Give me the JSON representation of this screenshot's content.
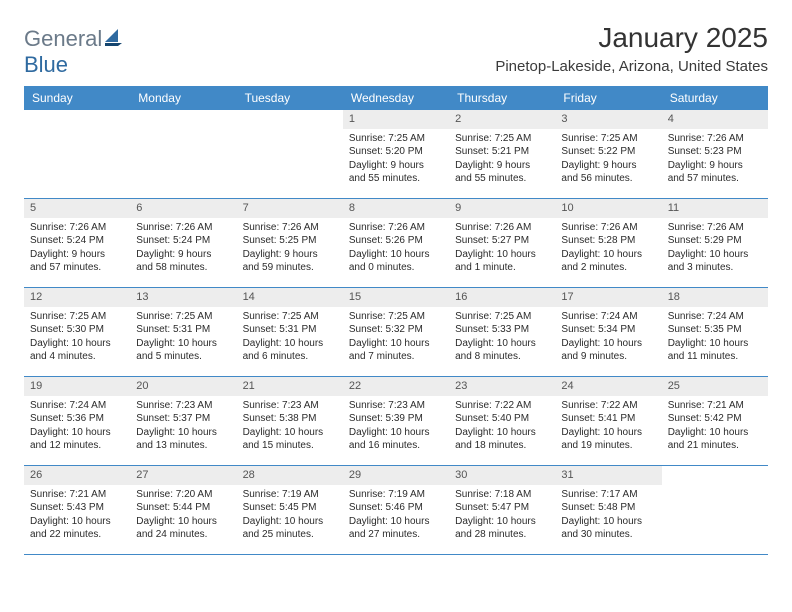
{
  "brand": {
    "part1": "General",
    "part2": "Blue"
  },
  "title": {
    "month": "January 2025",
    "location": "Pinetop-Lakeside, Arizona, United States"
  },
  "style": {
    "header_bg": "#4189c7",
    "header_text": "#ffffff",
    "daynum_bg": "#ededed",
    "daynum_text": "#555555",
    "row_border": "#4189c7",
    "body_text": "#2b2b2b",
    "title_text": "#333333",
    "logo_gray": "#6b7a89",
    "logo_blue": "#2f6aa0",
    "page_bg": "#ffffff",
    "font_sizes_pt": {
      "title_month": 21,
      "title_location": 11,
      "header": 9,
      "daynum": 8,
      "cell": 7.5,
      "logo": 16
    }
  },
  "columns": [
    "Sunday",
    "Monday",
    "Tuesday",
    "Wednesday",
    "Thursday",
    "Friday",
    "Saturday"
  ],
  "weeks": [
    [
      null,
      null,
      null,
      {
        "day": "1",
        "sunrise": "Sunrise: 7:25 AM",
        "sunset": "Sunset: 5:20 PM",
        "daylight1": "Daylight: 9 hours",
        "daylight2": "and 55 minutes."
      },
      {
        "day": "2",
        "sunrise": "Sunrise: 7:25 AM",
        "sunset": "Sunset: 5:21 PM",
        "daylight1": "Daylight: 9 hours",
        "daylight2": "and 55 minutes."
      },
      {
        "day": "3",
        "sunrise": "Sunrise: 7:25 AM",
        "sunset": "Sunset: 5:22 PM",
        "daylight1": "Daylight: 9 hours",
        "daylight2": "and 56 minutes."
      },
      {
        "day": "4",
        "sunrise": "Sunrise: 7:26 AM",
        "sunset": "Sunset: 5:23 PM",
        "daylight1": "Daylight: 9 hours",
        "daylight2": "and 57 minutes."
      }
    ],
    [
      {
        "day": "5",
        "sunrise": "Sunrise: 7:26 AM",
        "sunset": "Sunset: 5:24 PM",
        "daylight1": "Daylight: 9 hours",
        "daylight2": "and 57 minutes."
      },
      {
        "day": "6",
        "sunrise": "Sunrise: 7:26 AM",
        "sunset": "Sunset: 5:24 PM",
        "daylight1": "Daylight: 9 hours",
        "daylight2": "and 58 minutes."
      },
      {
        "day": "7",
        "sunrise": "Sunrise: 7:26 AM",
        "sunset": "Sunset: 5:25 PM",
        "daylight1": "Daylight: 9 hours",
        "daylight2": "and 59 minutes."
      },
      {
        "day": "8",
        "sunrise": "Sunrise: 7:26 AM",
        "sunset": "Sunset: 5:26 PM",
        "daylight1": "Daylight: 10 hours",
        "daylight2": "and 0 minutes."
      },
      {
        "day": "9",
        "sunrise": "Sunrise: 7:26 AM",
        "sunset": "Sunset: 5:27 PM",
        "daylight1": "Daylight: 10 hours",
        "daylight2": "and 1 minute."
      },
      {
        "day": "10",
        "sunrise": "Sunrise: 7:26 AM",
        "sunset": "Sunset: 5:28 PM",
        "daylight1": "Daylight: 10 hours",
        "daylight2": "and 2 minutes."
      },
      {
        "day": "11",
        "sunrise": "Sunrise: 7:26 AM",
        "sunset": "Sunset: 5:29 PM",
        "daylight1": "Daylight: 10 hours",
        "daylight2": "and 3 minutes."
      }
    ],
    [
      {
        "day": "12",
        "sunrise": "Sunrise: 7:25 AM",
        "sunset": "Sunset: 5:30 PM",
        "daylight1": "Daylight: 10 hours",
        "daylight2": "and 4 minutes."
      },
      {
        "day": "13",
        "sunrise": "Sunrise: 7:25 AM",
        "sunset": "Sunset: 5:31 PM",
        "daylight1": "Daylight: 10 hours",
        "daylight2": "and 5 minutes."
      },
      {
        "day": "14",
        "sunrise": "Sunrise: 7:25 AM",
        "sunset": "Sunset: 5:31 PM",
        "daylight1": "Daylight: 10 hours",
        "daylight2": "and 6 minutes."
      },
      {
        "day": "15",
        "sunrise": "Sunrise: 7:25 AM",
        "sunset": "Sunset: 5:32 PM",
        "daylight1": "Daylight: 10 hours",
        "daylight2": "and 7 minutes."
      },
      {
        "day": "16",
        "sunrise": "Sunrise: 7:25 AM",
        "sunset": "Sunset: 5:33 PM",
        "daylight1": "Daylight: 10 hours",
        "daylight2": "and 8 minutes."
      },
      {
        "day": "17",
        "sunrise": "Sunrise: 7:24 AM",
        "sunset": "Sunset: 5:34 PM",
        "daylight1": "Daylight: 10 hours",
        "daylight2": "and 9 minutes."
      },
      {
        "day": "18",
        "sunrise": "Sunrise: 7:24 AM",
        "sunset": "Sunset: 5:35 PM",
        "daylight1": "Daylight: 10 hours",
        "daylight2": "and 11 minutes."
      }
    ],
    [
      {
        "day": "19",
        "sunrise": "Sunrise: 7:24 AM",
        "sunset": "Sunset: 5:36 PM",
        "daylight1": "Daylight: 10 hours",
        "daylight2": "and 12 minutes."
      },
      {
        "day": "20",
        "sunrise": "Sunrise: 7:23 AM",
        "sunset": "Sunset: 5:37 PM",
        "daylight1": "Daylight: 10 hours",
        "daylight2": "and 13 minutes."
      },
      {
        "day": "21",
        "sunrise": "Sunrise: 7:23 AM",
        "sunset": "Sunset: 5:38 PM",
        "daylight1": "Daylight: 10 hours",
        "daylight2": "and 15 minutes."
      },
      {
        "day": "22",
        "sunrise": "Sunrise: 7:23 AM",
        "sunset": "Sunset: 5:39 PM",
        "daylight1": "Daylight: 10 hours",
        "daylight2": "and 16 minutes."
      },
      {
        "day": "23",
        "sunrise": "Sunrise: 7:22 AM",
        "sunset": "Sunset: 5:40 PM",
        "daylight1": "Daylight: 10 hours",
        "daylight2": "and 18 minutes."
      },
      {
        "day": "24",
        "sunrise": "Sunrise: 7:22 AM",
        "sunset": "Sunset: 5:41 PM",
        "daylight1": "Daylight: 10 hours",
        "daylight2": "and 19 minutes."
      },
      {
        "day": "25",
        "sunrise": "Sunrise: 7:21 AM",
        "sunset": "Sunset: 5:42 PM",
        "daylight1": "Daylight: 10 hours",
        "daylight2": "and 21 minutes."
      }
    ],
    [
      {
        "day": "26",
        "sunrise": "Sunrise: 7:21 AM",
        "sunset": "Sunset: 5:43 PM",
        "daylight1": "Daylight: 10 hours",
        "daylight2": "and 22 minutes."
      },
      {
        "day": "27",
        "sunrise": "Sunrise: 7:20 AM",
        "sunset": "Sunset: 5:44 PM",
        "daylight1": "Daylight: 10 hours",
        "daylight2": "and 24 minutes."
      },
      {
        "day": "28",
        "sunrise": "Sunrise: 7:19 AM",
        "sunset": "Sunset: 5:45 PM",
        "daylight1": "Daylight: 10 hours",
        "daylight2": "and 25 minutes."
      },
      {
        "day": "29",
        "sunrise": "Sunrise: 7:19 AM",
        "sunset": "Sunset: 5:46 PM",
        "daylight1": "Daylight: 10 hours",
        "daylight2": "and 27 minutes."
      },
      {
        "day": "30",
        "sunrise": "Sunrise: 7:18 AM",
        "sunset": "Sunset: 5:47 PM",
        "daylight1": "Daylight: 10 hours",
        "daylight2": "and 28 minutes."
      },
      {
        "day": "31",
        "sunrise": "Sunrise: 7:17 AM",
        "sunset": "Sunset: 5:48 PM",
        "daylight1": "Daylight: 10 hours",
        "daylight2": "and 30 minutes."
      },
      null
    ]
  ]
}
